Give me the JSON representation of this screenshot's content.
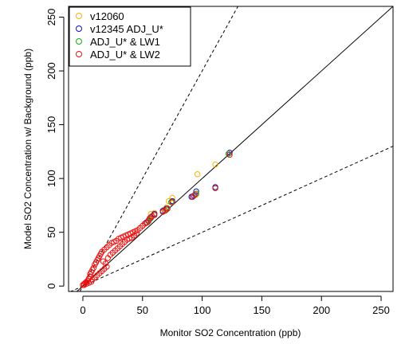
{
  "chart_data": {
    "type": "scatter",
    "title": "",
    "xlabel": "Monitor SO2 Concentration (ppb)",
    "ylabel": "Model SO2 Concentration w/ Background (ppb)",
    "xlim": [
      -12,
      260
    ],
    "ylim": [
      -5,
      260
    ],
    "xticks": [
      0,
      50,
      100,
      150,
      200,
      250
    ],
    "yticks": [
      0,
      50,
      100,
      150,
      200,
      250
    ],
    "legend_position": "top-left",
    "reference_lines": [
      {
        "kind": "solid",
        "slope": 1
      },
      {
        "kind": "dashed",
        "slope": 2
      },
      {
        "kind": "dashed",
        "slope": 0.5
      }
    ],
    "series": [
      {
        "name": "v12060",
        "color": "#FFB000",
        "points": [
          [
            123,
            122
          ],
          [
            111,
            113
          ],
          [
            96,
            104
          ],
          [
            92,
            83
          ],
          [
            95,
            85
          ],
          [
            75,
            82
          ],
          [
            72,
            79
          ],
          [
            70,
            73
          ],
          [
            68,
            71
          ],
          [
            60,
            68
          ],
          [
            57,
            67
          ],
          [
            58,
            65
          ],
          [
            56,
            62
          ],
          [
            52,
            58
          ],
          [
            50,
            56
          ]
        ]
      },
      {
        "name": "v12345 ADJ_U*",
        "color": "#1010CC",
        "points": [
          [
            123,
            124
          ],
          [
            111,
            92
          ],
          [
            95,
            88
          ],
          [
            93,
            84
          ],
          [
            91,
            83
          ],
          [
            75,
            79
          ],
          [
            70,
            72
          ],
          [
            67,
            70
          ],
          [
            60,
            67
          ],
          [
            57,
            64
          ],
          [
            55,
            61
          ],
          [
            53,
            59
          ]
        ]
      },
      {
        "name": "ADJ_U* & LW1",
        "color": "#10B010",
        "points": [
          [
            122,
            123
          ],
          [
            111,
            91
          ],
          [
            95,
            86
          ],
          [
            92,
            83
          ],
          [
            74,
            78
          ],
          [
            70,
            71
          ],
          [
            57,
            63
          ],
          [
            55,
            60
          ]
        ]
      },
      {
        "name": "ADJ_U* & LW2",
        "color": "#EE1111",
        "points": [
          [
            123,
            122
          ],
          [
            111,
            91
          ],
          [
            94,
            85
          ],
          [
            92,
            83
          ],
          [
            75,
            78
          ],
          [
            71,
            72
          ],
          [
            69,
            70
          ],
          [
            67,
            69
          ],
          [
            60,
            66
          ],
          [
            58,
            65
          ],
          [
            56,
            63
          ],
          [
            55,
            61
          ],
          [
            54,
            59
          ],
          [
            52,
            58
          ],
          [
            50,
            56
          ],
          [
            48,
            54
          ],
          [
            46,
            52
          ],
          [
            44,
            51
          ],
          [
            42,
            50
          ],
          [
            40,
            49
          ],
          [
            38,
            48
          ],
          [
            36,
            47
          ],
          [
            34,
            46
          ],
          [
            32,
            45
          ],
          [
            30,
            44
          ],
          [
            28,
            42
          ],
          [
            26,
            41
          ],
          [
            24,
            40
          ],
          [
            22,
            38
          ],
          [
            20,
            36
          ],
          [
            18,
            34
          ],
          [
            16,
            32
          ],
          [
            15,
            30
          ],
          [
            14,
            28
          ],
          [
            13,
            26
          ],
          [
            12,
            24
          ],
          [
            11,
            22
          ],
          [
            10,
            20
          ],
          [
            9,
            17
          ],
          [
            8,
            15
          ],
          [
            7,
            13
          ],
          [
            6,
            11
          ],
          [
            6,
            9
          ],
          [
            5,
            7
          ],
          [
            4,
            5
          ],
          [
            3,
            4
          ],
          [
            2,
            3
          ],
          [
            1,
            2
          ],
          [
            0,
            1
          ],
          [
            1,
            1
          ],
          [
            3,
            2
          ],
          [
            5,
            3
          ],
          [
            7,
            4
          ],
          [
            8,
            6
          ],
          [
            10,
            8
          ],
          [
            12,
            10
          ],
          [
            14,
            12
          ],
          [
            16,
            14
          ],
          [
            18,
            16
          ],
          [
            20,
            18
          ],
          [
            19,
            21
          ],
          [
            17,
            23
          ],
          [
            21,
            26
          ],
          [
            23,
            29
          ],
          [
            25,
            31
          ],
          [
            27,
            33
          ],
          [
            29,
            35
          ],
          [
            31,
            37
          ],
          [
            33,
            39
          ],
          [
            35,
            41
          ],
          [
            37,
            43
          ],
          [
            39,
            44
          ],
          [
            41,
            45
          ],
          [
            43,
            47
          ],
          [
            45,
            49
          ]
        ]
      }
    ]
  }
}
